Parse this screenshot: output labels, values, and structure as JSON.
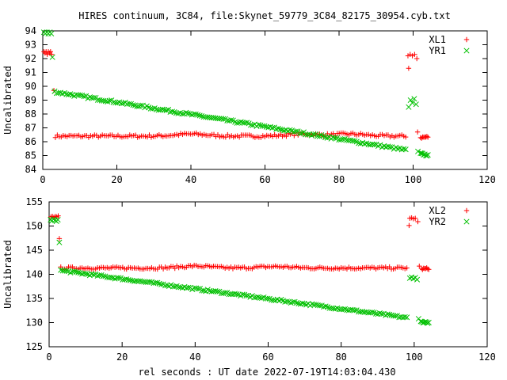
{
  "title": "HIRES continuum, 3C84, file:Skynet_59779_3C84_82175_30954.cyb.txt",
  "xlabel": "rel seconds : UT date 2022-07-19T14:03:04.430",
  "colors": {
    "red": "#ff0000",
    "green": "#00c000"
  },
  "chart_data": [
    {
      "type": "scatter",
      "ylabel": "Uncalibrated",
      "xlim": [
        0,
        120
      ],
      "ylim": [
        84,
        94
      ],
      "xticks": [
        0,
        20,
        40,
        60,
        80,
        100,
        120
      ],
      "yticks": [
        84,
        85,
        86,
        87,
        88,
        89,
        90,
        91,
        92,
        93,
        94
      ],
      "legend_position": "top-right",
      "series": [
        {
          "name": "XL1",
          "marker": "plus",
          "color": "#ff0000",
          "segments": [
            {
              "x": [
                0.3,
                0.6,
                0.9,
                1.2,
                1.5,
                1.8,
                2.1,
                2.4
              ],
              "y": [
                92.5,
                92.4,
                92.5,
                92.3,
                92.5,
                92.4,
                92.5,
                92.3
              ]
            },
            {
              "x": [
                3.0
              ],
              "y": [
                89.7
              ]
            },
            {
              "x": [
                3.4,
                98.0
              ],
              "y": [
                86.4,
                86.4
              ],
              "count": 180,
              "jitter": 0.1,
              "bumps": [
                [
                  40,
                  86.55
                ],
                [
                  70,
                  86.55
                ],
                [
                  83,
                  86.55
                ]
              ]
            },
            {
              "x": [
                98.6,
                99.2,
                99.8,
                100.4
              ],
              "y": [
                92.2,
                92.3,
                92.2,
                92.3
              ]
            },
            {
              "x": [
                98.8
              ],
              "y": [
                91.3
              ]
            },
            {
              "x": [
                101.0
              ],
              "y": [
                92.0
              ]
            },
            {
              "x": [
                101.2
              ],
              "y": [
                86.7
              ]
            },
            {
              "x": [
                102.0,
                104.0
              ],
              "y": [
                86.3,
                86.35
              ],
              "count": 8,
              "jitter": 0.08
            }
          ]
        },
        {
          "name": "YR1",
          "marker": "cross",
          "color": "#00c000",
          "segments": [
            {
              "x": [
                0.3,
                0.7,
                1.1,
                1.5,
                1.9,
                2.3
              ],
              "y": [
                93.9,
                93.8,
                93.9,
                93.8,
                93.9,
                93.8
              ]
            },
            {
              "x": [
                2.6
              ],
              "y": [
                92.1
              ]
            },
            {
              "x": [
                3.2,
                98.0
              ],
              "y": [
                89.6,
                85.4
              ],
              "count": 180,
              "jitter": 0.08
            },
            {
              "x": [
                98.8,
                99.3,
                99.8,
                100.3,
                100.8
              ],
              "y": [
                88.5,
                89.0,
                88.8,
                89.1,
                88.7
              ]
            },
            {
              "x": [
                101.3
              ],
              "y": [
                85.3
              ]
            },
            {
              "x": [
                102.0,
                104.0
              ],
              "y": [
                85.15,
                85.0
              ],
              "count": 8,
              "jitter": 0.05
            }
          ]
        }
      ]
    },
    {
      "type": "scatter",
      "ylabel": "Uncalibrated",
      "xlim": [
        0,
        120
      ],
      "ylim": [
        125,
        155
      ],
      "xticks": [
        0,
        20,
        40,
        60,
        80,
        100,
        120
      ],
      "yticks": [
        125,
        130,
        135,
        140,
        145,
        150,
        155
      ],
      "legend_position": "top-right",
      "series": [
        {
          "name": "XL2",
          "marker": "plus",
          "color": "#ff0000",
          "segments": [
            {
              "x": [
                0.5,
                0.9,
                1.3,
                1.7,
                2.1,
                2.5
              ],
              "y": [
                151.9,
                152.0,
                151.8,
                152.0,
                151.9,
                152.1
              ]
            },
            {
              "x": [
                2.8
              ],
              "y": [
                147.4
              ]
            },
            {
              "x": [
                3.2,
                98.0
              ],
              "y": [
                141.3,
                141.3
              ],
              "count": 180,
              "jitter": 0.25,
              "bumps": [
                [
                  40,
                  141.7
                ],
                [
                  62,
                  141.6
                ]
              ]
            },
            {
              "x": [
                98.8,
                99.3,
                99.8,
                100.3
              ],
              "y": [
                151.6,
                151.7,
                151.5,
                151.6
              ]
            },
            {
              "x": [
                98.6
              ],
              "y": [
                150.1
              ]
            },
            {
              "x": [
                101.0
              ],
              "y": [
                150.9
              ]
            },
            {
              "x": [
                101.4
              ],
              "y": [
                141.7
              ]
            },
            {
              "x": [
                102.0,
                104.0
              ],
              "y": [
                141.1,
                141.2
              ],
              "count": 8,
              "jitter": 0.2
            }
          ]
        },
        {
          "name": "YR2",
          "marker": "cross",
          "color": "#00c000",
          "segments": [
            {
              "x": [
                0.4,
                0.8,
                1.2,
                1.6,
                2.0,
                2.4
              ],
              "y": [
                151.3,
                151.1,
                151.4,
                151.2,
                151.0,
                151.3
              ]
            },
            {
              "x": [
                2.8
              ],
              "y": [
                146.6
              ]
            },
            {
              "x": [
                3.2,
                98.0
              ],
              "y": [
                140.8,
                131.0
              ],
              "count": 180,
              "jitter": 0.2
            },
            {
              "x": [
                98.8,
                99.3,
                99.8,
                100.3,
                100.8
              ],
              "y": [
                139.2,
                139.4,
                139.1,
                139.3,
                138.9
              ]
            },
            {
              "x": [
                101.2
              ],
              "y": [
                130.8
              ]
            },
            {
              "x": [
                101.8,
                104.0
              ],
              "y": [
                130.2,
                130.0
              ],
              "count": 8,
              "jitter": 0.15
            }
          ]
        }
      ]
    }
  ]
}
